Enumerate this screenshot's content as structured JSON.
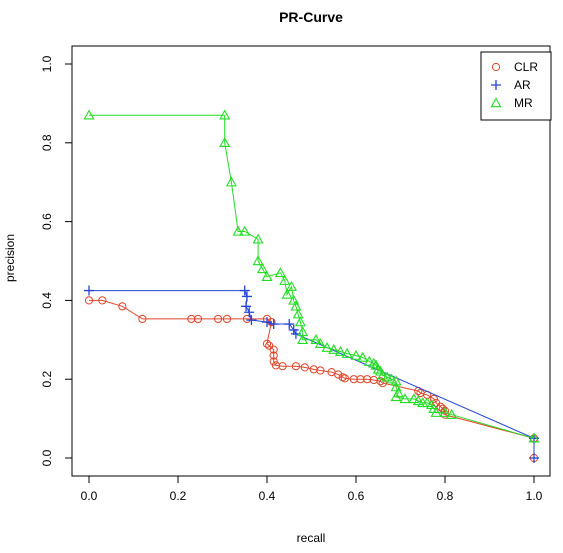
{
  "chart_data": {
    "type": "line",
    "title": "PR-Curve",
    "xlabel": "recall",
    "ylabel": "precision",
    "xlim": [
      0,
      1
    ],
    "ylim": [
      0,
      1
    ],
    "x_ticks": [
      "0.0",
      "0.2",
      "0.4",
      "0.6",
      "0.8",
      "1.0"
    ],
    "y_ticks": [
      "0.0",
      "0.2",
      "0.4",
      "0.6",
      "0.8",
      "1.0"
    ],
    "grid": false,
    "legend_position": "top-right",
    "series": [
      {
        "name": "CLR",
        "color": "#e0452a",
        "marker": "circle",
        "points": [
          [
            0.0,
            0.4
          ],
          [
            0.03,
            0.4
          ],
          [
            0.075,
            0.385
          ],
          [
            0.12,
            0.353
          ],
          [
            0.23,
            0.353
          ],
          [
            0.245,
            0.353
          ],
          [
            0.29,
            0.353
          ],
          [
            0.31,
            0.353
          ],
          [
            0.355,
            0.353
          ],
          [
            0.4,
            0.353
          ],
          [
            0.41,
            0.345
          ],
          [
            0.4,
            0.29
          ],
          [
            0.405,
            0.285
          ],
          [
            0.415,
            0.275
          ],
          [
            0.415,
            0.26
          ],
          [
            0.415,
            0.245
          ],
          [
            0.42,
            0.235
          ],
          [
            0.435,
            0.233
          ],
          [
            0.465,
            0.233
          ],
          [
            0.485,
            0.23
          ],
          [
            0.505,
            0.225
          ],
          [
            0.52,
            0.222
          ],
          [
            0.545,
            0.218
          ],
          [
            0.56,
            0.212
          ],
          [
            0.57,
            0.205
          ],
          [
            0.575,
            0.202
          ],
          [
            0.595,
            0.2
          ],
          [
            0.61,
            0.2
          ],
          [
            0.625,
            0.2
          ],
          [
            0.64,
            0.198
          ],
          [
            0.655,
            0.195
          ],
          [
            0.66,
            0.19
          ],
          [
            0.74,
            0.17
          ],
          [
            0.745,
            0.165
          ],
          [
            0.76,
            0.16
          ],
          [
            0.775,
            0.15
          ],
          [
            0.78,
            0.14
          ],
          [
            0.79,
            0.13
          ],
          [
            0.795,
            0.125
          ],
          [
            0.8,
            0.12
          ],
          [
            0.8,
            0.11
          ],
          [
            1.0,
            0.05
          ],
          [
            1.0,
            0.0
          ]
        ]
      },
      {
        "name": "AR",
        "color": "#2444d6",
        "marker": "plus",
        "points": [
          [
            0.0,
            0.425
          ],
          [
            0.35,
            0.425
          ],
          [
            0.355,
            0.41
          ],
          [
            0.353,
            0.385
          ],
          [
            0.36,
            0.37
          ],
          [
            0.365,
            0.35
          ],
          [
            0.4,
            0.345
          ],
          [
            0.415,
            0.34
          ],
          [
            0.45,
            0.34
          ],
          [
            0.46,
            0.325
          ],
          [
            0.465,
            0.315
          ],
          [
            1.0,
            0.05
          ],
          [
            1.0,
            0.0
          ]
        ]
      },
      {
        "name": "MR",
        "color": "#22dd22",
        "marker": "triangle",
        "points": [
          [
            0.0,
            0.87
          ],
          [
            0.305,
            0.87
          ],
          [
            0.305,
            0.8
          ],
          [
            0.32,
            0.7
          ],
          [
            0.335,
            0.575
          ],
          [
            0.35,
            0.575
          ],
          [
            0.38,
            0.555
          ],
          [
            0.38,
            0.5
          ],
          [
            0.39,
            0.48
          ],
          [
            0.4,
            0.46
          ],
          [
            0.43,
            0.47
          ],
          [
            0.44,
            0.45
          ],
          [
            0.445,
            0.415
          ],
          [
            0.455,
            0.435
          ],
          [
            0.46,
            0.4
          ],
          [
            0.465,
            0.385
          ],
          [
            0.47,
            0.365
          ],
          [
            0.475,
            0.345
          ],
          [
            0.48,
            0.32
          ],
          [
            0.48,
            0.3
          ],
          [
            0.51,
            0.3
          ],
          [
            0.52,
            0.29
          ],
          [
            0.535,
            0.28
          ],
          [
            0.55,
            0.275
          ],
          [
            0.565,
            0.27
          ],
          [
            0.58,
            0.265
          ],
          [
            0.6,
            0.26
          ],
          [
            0.615,
            0.255
          ],
          [
            0.63,
            0.245
          ],
          [
            0.64,
            0.24
          ],
          [
            0.645,
            0.235
          ],
          [
            0.65,
            0.225
          ],
          [
            0.655,
            0.22
          ],
          [
            0.66,
            0.21
          ],
          [
            0.67,
            0.205
          ],
          [
            0.68,
            0.2
          ],
          [
            0.69,
            0.195
          ],
          [
            0.69,
            0.18
          ],
          [
            0.695,
            0.165
          ],
          [
            0.69,
            0.155
          ],
          [
            0.71,
            0.15
          ],
          [
            0.73,
            0.15
          ],
          [
            0.74,
            0.145
          ],
          [
            0.75,
            0.14
          ],
          [
            0.76,
            0.14
          ],
          [
            0.77,
            0.135
          ],
          [
            0.775,
            0.125
          ],
          [
            0.78,
            0.115
          ],
          [
            0.8,
            0.115
          ],
          [
            0.815,
            0.11
          ],
          [
            1.0,
            0.05
          ]
        ]
      }
    ]
  }
}
